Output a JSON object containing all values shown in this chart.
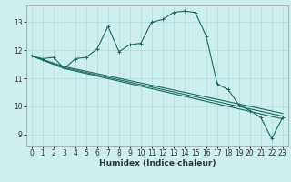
{
  "xlabel": "Humidex (Indice chaleur)",
  "background_color": "#cceeed",
  "grid_color": "#aadddd",
  "line_color": "#1a6b5e",
  "xlim": [
    -0.5,
    23.5
  ],
  "ylim": [
    8.6,
    13.6
  ],
  "xticks": [
    0,
    1,
    2,
    3,
    4,
    5,
    6,
    7,
    8,
    9,
    10,
    11,
    12,
    13,
    14,
    15,
    16,
    17,
    18,
    19,
    20,
    21,
    22,
    23
  ],
  "yticks": [
    9,
    10,
    11,
    12,
    13
  ],
  "line1_x": [
    0,
    1,
    2,
    3,
    4,
    5,
    6,
    7,
    8,
    9,
    10,
    11,
    12,
    13,
    14,
    15,
    16,
    17,
    18,
    19,
    20,
    21,
    22,
    23
  ],
  "line1_y": [
    11.8,
    11.7,
    11.75,
    11.35,
    11.7,
    11.75,
    12.05,
    12.85,
    11.95,
    12.2,
    12.25,
    13.0,
    13.1,
    13.35,
    13.4,
    13.35,
    12.5,
    10.8,
    10.6,
    10.05,
    9.85,
    9.6,
    8.85,
    9.6
  ],
  "line2_x": [
    0,
    3,
    23
  ],
  "line2_y": [
    11.8,
    11.35,
    9.55
  ],
  "line3_x": [
    0,
    3,
    23
  ],
  "line3_y": [
    11.8,
    11.38,
    9.65
  ],
  "line4_x": [
    0,
    3,
    23
  ],
  "line4_y": [
    11.8,
    11.42,
    9.75
  ],
  "linewidth": 0.8,
  "xlabel_fontsize": 6.5,
  "tick_fontsize": 5.5
}
